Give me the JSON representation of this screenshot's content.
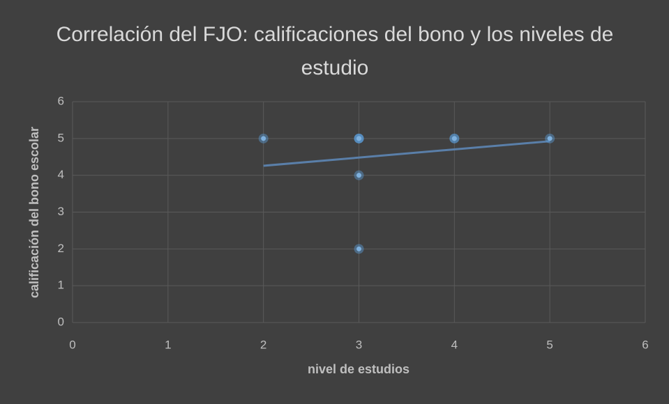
{
  "chart_data": {
    "type": "scatter",
    "title": "Correlación del FJO: calificaciones del bono y los niveles de estudio",
    "x_label": "nivel de estudios",
    "y_label": "calificación del bono escolar",
    "x": [
      2,
      3,
      3,
      3,
      4,
      4,
      5,
      3,
      3
    ],
    "values": [
      5,
      5,
      5,
      5,
      5,
      5,
      5,
      4,
      2
    ],
    "color": "#9dc3e6",
    "trendline": "linear",
    "trendline_color": "#5a7fa9",
    "xlim": [
      0,
      6
    ],
    "xticks": [
      0,
      1,
      2,
      3,
      4,
      5,
      6
    ],
    "ylim": [
      0,
      6
    ],
    "yticks": [
      0,
      1,
      2,
      3,
      4,
      5,
      6
    ],
    "grid": true
  }
}
